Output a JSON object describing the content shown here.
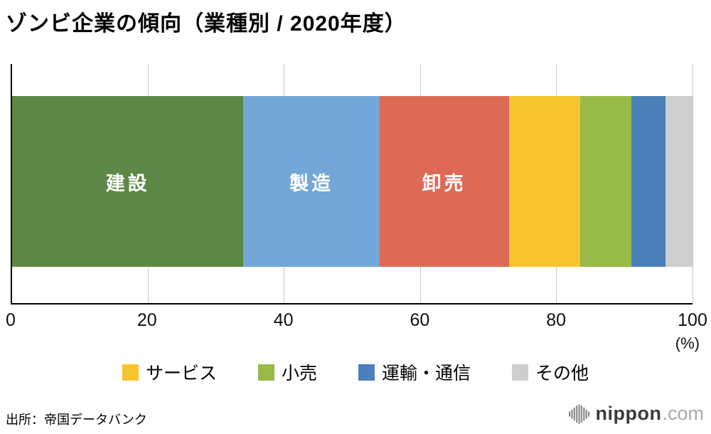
{
  "title": "ゾンビ企業の傾向（業種別 / 2020年度）",
  "chart_data": {
    "type": "bar",
    "orientation": "horizontal",
    "stacked": true,
    "title": "ゾンビ企業の傾向（業種別 / 2020年度）",
    "xlim": [
      0,
      100
    ],
    "x_ticks": [
      0,
      20,
      40,
      60,
      80,
      100
    ],
    "x_unit": "(%)",
    "grid": true,
    "segments": [
      {
        "name": "建設",
        "value": 34,
        "color": "#5d8746",
        "show_label": true
      },
      {
        "name": "製造",
        "value": 20,
        "color": "#72a7d8",
        "show_label": true
      },
      {
        "name": "卸売",
        "value": 19,
        "color": "#dd6a55",
        "show_label": true
      },
      {
        "name": "サービス",
        "value": 10.5,
        "color": "#f6c42d",
        "show_label": false
      },
      {
        "name": "小売",
        "value": 7.5,
        "color": "#98ba47",
        "show_label": false
      },
      {
        "name": "運輸・通信",
        "value": 5,
        "color": "#4c80b8",
        "show_label": false
      },
      {
        "name": "その他",
        "value": 4,
        "color": "#cecece",
        "show_label": false
      }
    ],
    "legend_position": "bottom",
    "legend": [
      {
        "label": "サービス",
        "color": "#f6c42d"
      },
      {
        "label": "小売",
        "color": "#98ba47"
      },
      {
        "label": "運輸・通信",
        "color": "#4c80b8"
      },
      {
        "label": "その他",
        "color": "#cecece"
      }
    ]
  },
  "source": "出所：帝国データバンク",
  "logo": {
    "brand": "nippon",
    "tld": ".com",
    "icon": "waveform-icon"
  }
}
